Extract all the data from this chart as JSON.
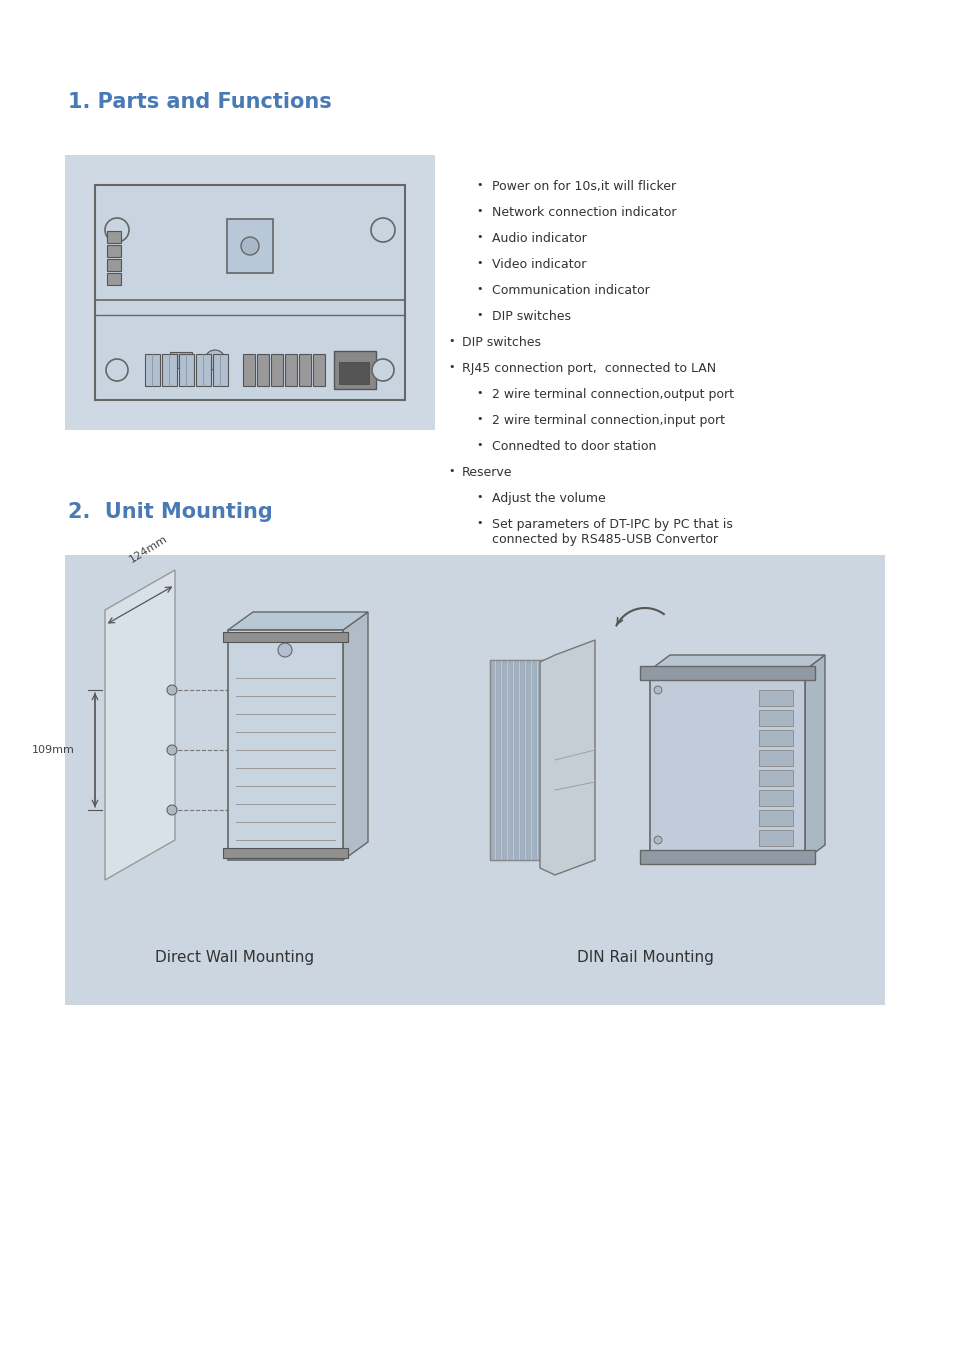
{
  "title1": "1. Parts and Functions",
  "title2": "2.  Unit Mounting",
  "title_color": "#4a7ab5",
  "title_fontsize": 15,
  "bg_color": "#ffffff",
  "section1_bg": "#cfd9e3",
  "section2_bg": "#ccd6e0",
  "bullet_items": [
    "Power on for 10s,it will flicker",
    "Network connection indicator",
    "Audio indicator",
    "Video indicator",
    "Communication indicator",
    "DIP switches",
    "DIP switches",
    "RJ45 connection port,  connected to LAN",
    "2 wire terminal connection,output port",
    "2 wire terminal connection,input port",
    "Connedted to door station",
    "Reserve",
    "Adjust the volume",
    "Set parameters of DT-IPC by PC that is\nconnected by RS485-USB Convertor"
  ],
  "bullet_indents": [
    1,
    1,
    1,
    1,
    1,
    1,
    0,
    0,
    1,
    1,
    1,
    0,
    1,
    1
  ],
  "caption_left": "Direct Wall Mounting",
  "caption_right": "DIN Rail Mounting",
  "dim_124": "124mm",
  "dim_109": "109mm"
}
